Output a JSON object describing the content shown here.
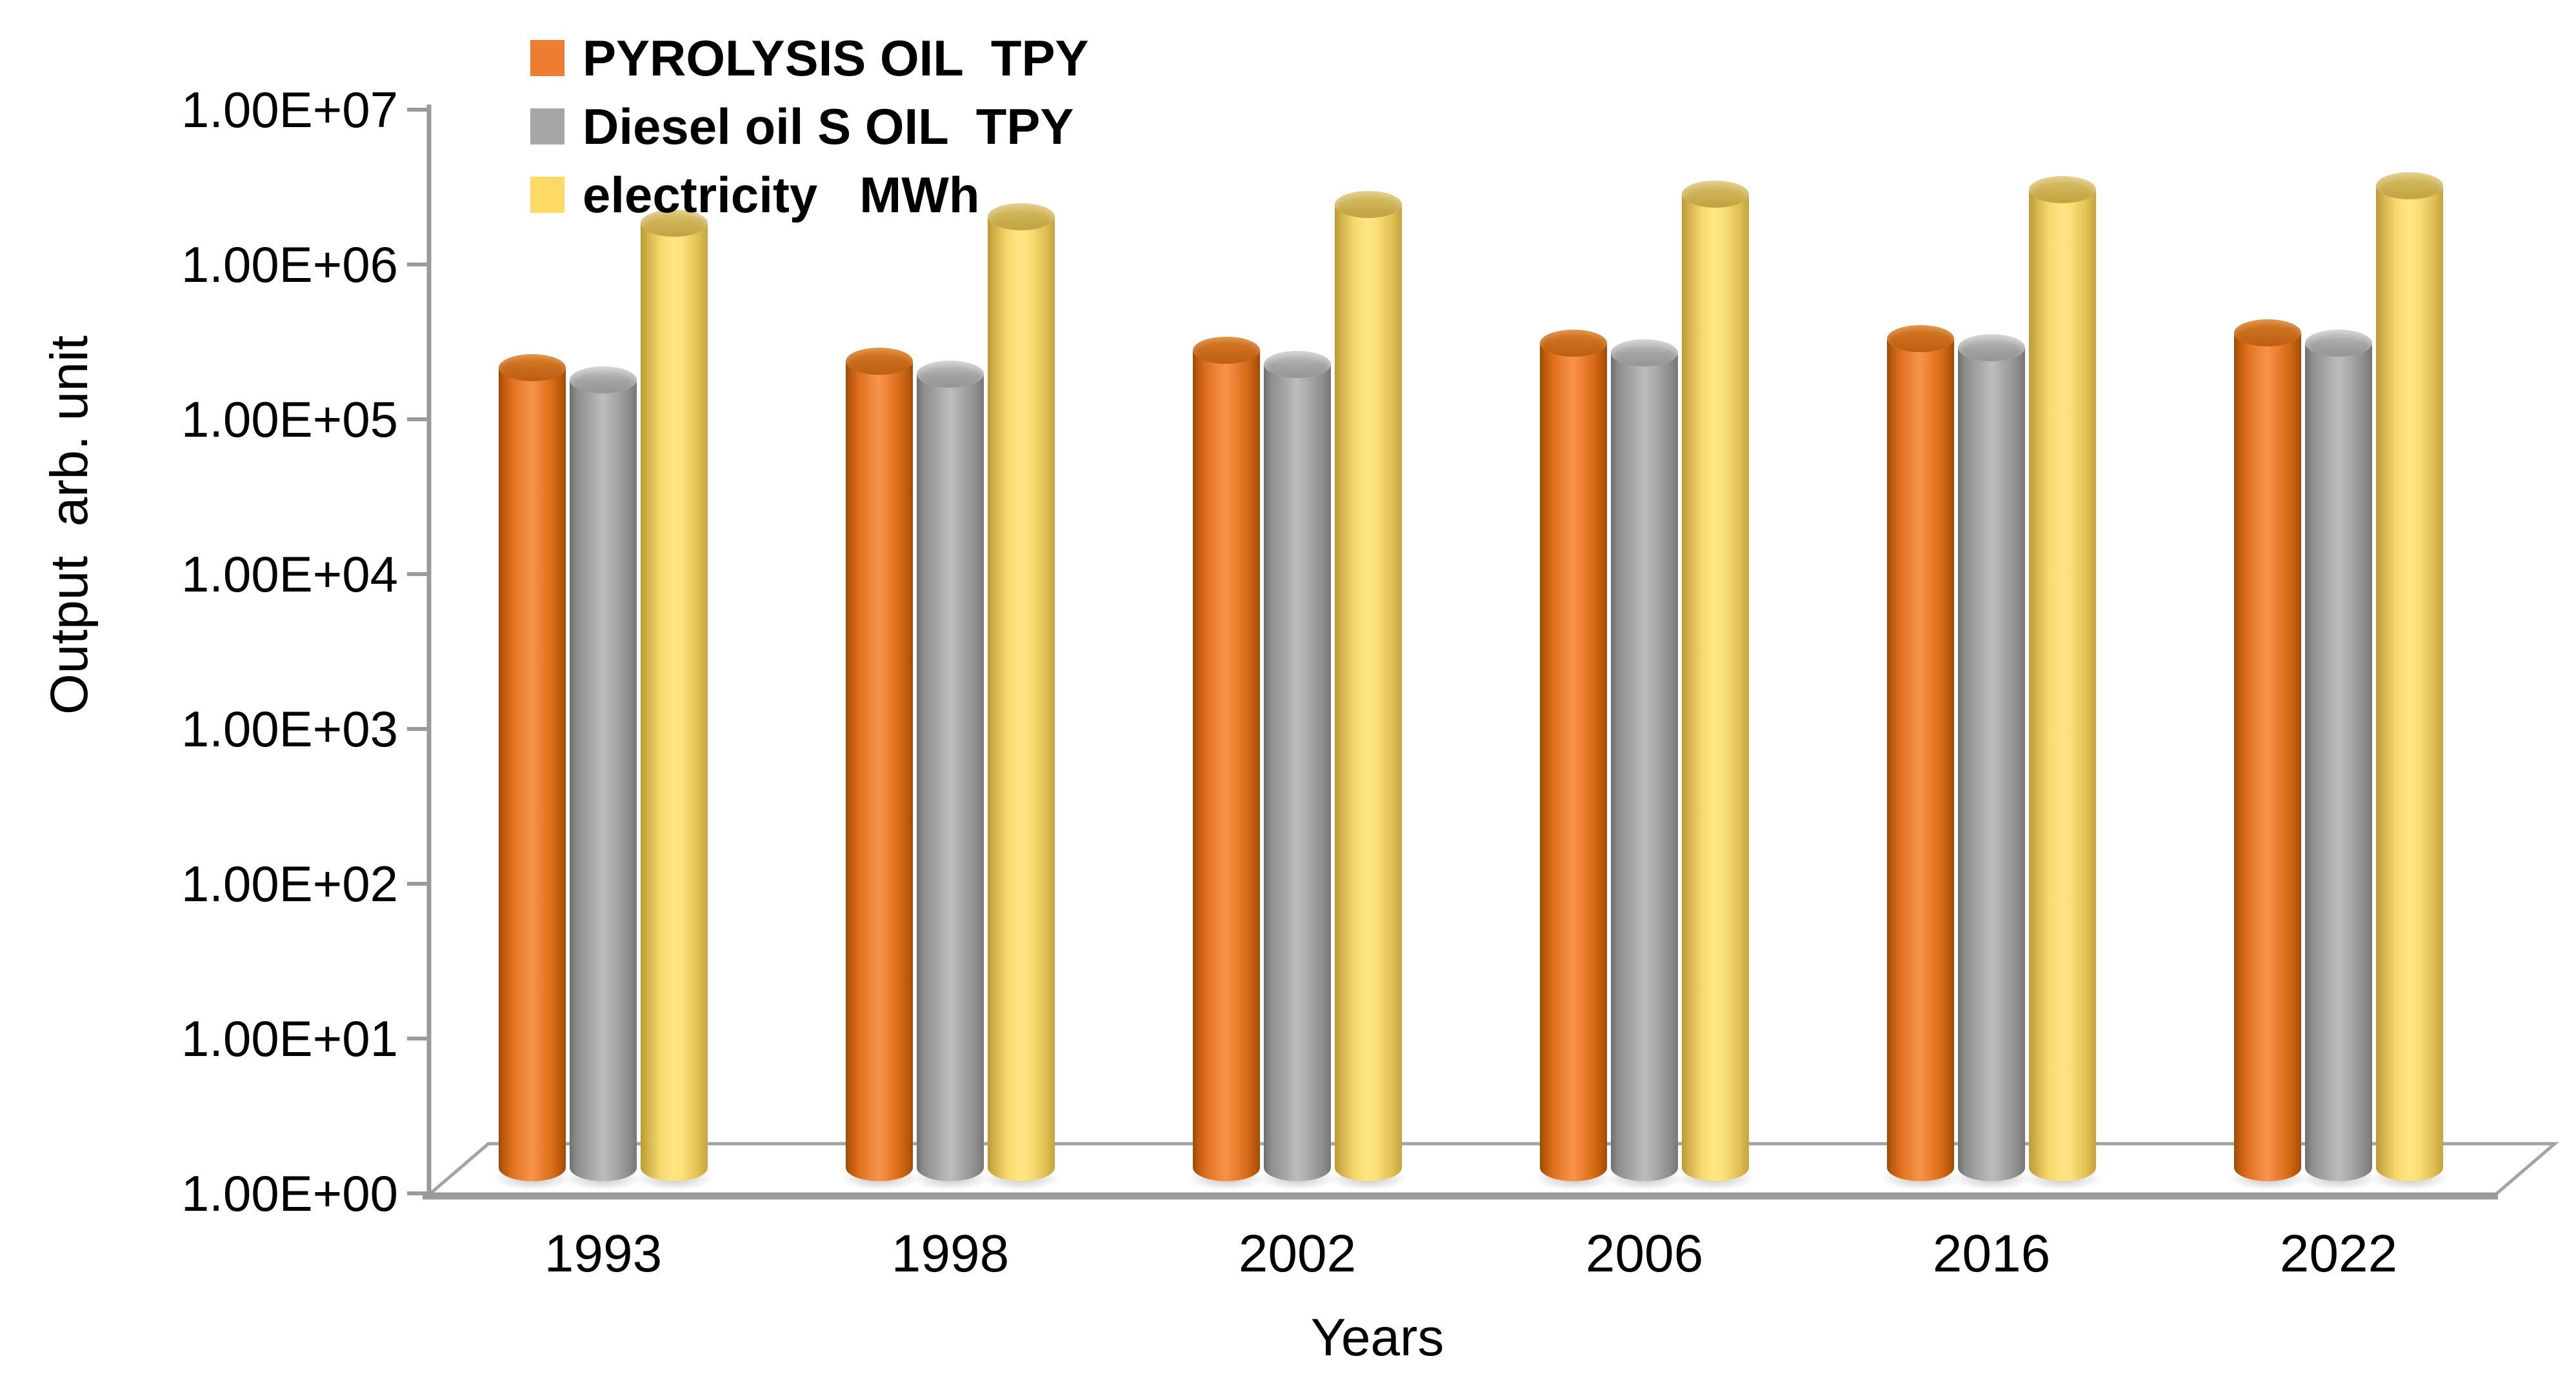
{
  "page": {
    "background": "#ffffff"
  },
  "y_axis": {
    "title": "Output  arb. unit",
    "scale": "log",
    "tick_labels": [
      "1.00E+07",
      "1.00E+06",
      "1.00E+05",
      "1.00E+04",
      "1.00E+03",
      "1.00E+02",
      "1.00E+01",
      "1.00E+00"
    ],
    "axis_color": "#9a9a9a",
    "text_color": "#000000"
  },
  "x_axis": {
    "title": "Years",
    "categories": [
      "1993",
      "1998",
      "2002",
      "2006",
      "2016",
      "2022"
    ]
  },
  "legend": {
    "position": "top-left-inside",
    "items": [
      {
        "label": "PYROLYSIS OIL  TPY",
        "color": "#ED7D31"
      },
      {
        "label": "Diesel oil S OIL  TPY",
        "color": "#A6A6A6"
      },
      {
        "label": "electricity   MWh",
        "color": "#FFD966"
      }
    ]
  },
  "chart_data": {
    "type": "bar",
    "style": "3d-cylinder",
    "title": "",
    "xlabel": "Years",
    "ylabel": "Output  arb. unit",
    "y_scale": "log",
    "ylim": [
      1,
      10000000
    ],
    "grid": false,
    "legend_position": "top-left-inside",
    "categories": [
      "1993",
      "1998",
      "2002",
      "2006",
      "2016",
      "2022"
    ],
    "series": [
      {
        "name": "PYROLYSIS OIL  TPY",
        "color": "#ED7D31",
        "values": [
          200000,
          220000,
          260000,
          290000,
          310000,
          340000
        ]
      },
      {
        "name": "Diesel oil S OIL  TPY",
        "color": "#A6A6A6",
        "values": [
          165000,
          180000,
          210000,
          250000,
          270000,
          290000
        ]
      },
      {
        "name": "electricity   MWh",
        "color": "#FFD966",
        "values": [
          1800000,
          2000000,
          2400000,
          2800000,
          3000000,
          3200000
        ]
      }
    ]
  }
}
